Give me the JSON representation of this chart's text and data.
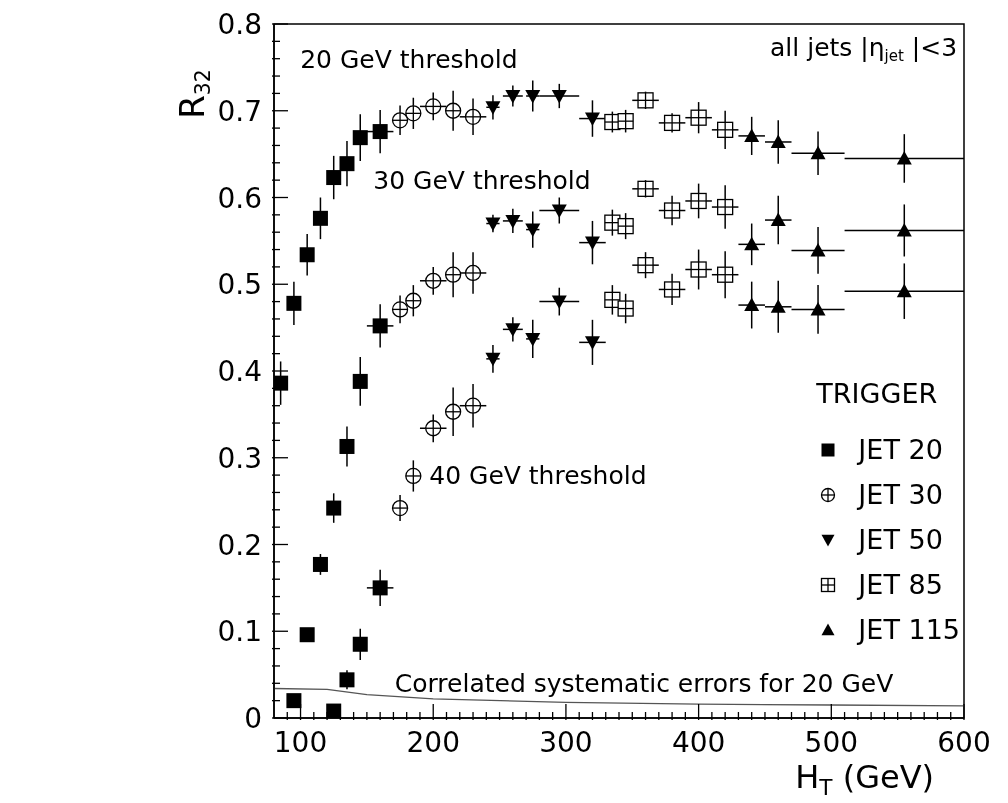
{
  "chart_data": {
    "type": "scatter",
    "xlabel": "H$_{T}$ (GeV)",
    "ylabel": "R$_{32}$",
    "legend_title": "TRIGGER",
    "xlim": [
      80,
      600
    ],
    "ylim": [
      0,
      0.8
    ],
    "xticks": [
      {
        "value": 90,
        "label": null
      },
      100,
      {
        "value": 110,
        "label": null
      },
      {
        "value": 120,
        "label": null
      },
      {
        "value": 130,
        "label": null
      },
      {
        "value": 140,
        "label": null
      },
      {
        "value": 150,
        "label": null
      },
      {
        "value": 160,
        "label": null
      },
      {
        "value": 170,
        "label": null
      },
      {
        "value": 180,
        "label": null
      },
      {
        "value": 190,
        "label": null
      },
      200,
      {
        "value": 210,
        "label": null
      },
      {
        "value": 220,
        "label": null
      },
      {
        "value": 230,
        "label": null
      },
      {
        "value": 240,
        "label": null
      },
      {
        "value": 250,
        "label": null
      },
      {
        "value": 260,
        "label": null
      },
      {
        "value": 270,
        "label": null
      },
      {
        "value": 280,
        "label": null
      },
      {
        "value": 290,
        "label": null
      },
      300,
      {
        "value": 310,
        "label": null
      },
      {
        "value": 320,
        "label": null
      },
      {
        "value": 330,
        "label": null
      },
      {
        "value": 340,
        "label": null
      },
      {
        "value": 350,
        "label": null
      },
      {
        "value": 360,
        "label": null
      },
      {
        "value": 370,
        "label": null
      },
      {
        "value": 380,
        "label": null
      },
      {
        "value": 390,
        "label": null
      },
      400,
      {
        "value": 410,
        "label": null
      },
      {
        "value": 420,
        "label": null
      },
      {
        "value": 430,
        "label": null
      },
      {
        "value": 440,
        "label": null
      },
      {
        "value": 450,
        "label": null
      },
      {
        "value": 460,
        "label": null
      },
      {
        "value": 470,
        "label": null
      },
      {
        "value": 480,
        "label": null
      },
      {
        "value": 490,
        "label": null
      },
      500,
      {
        "value": 510,
        "label": null
      },
      {
        "value": 520,
        "label": null
      },
      {
        "value": 530,
        "label": null
      },
      {
        "value": 540,
        "label": null
      },
      {
        "value": 550,
        "label": null
      },
      {
        "value": 560,
        "label": null
      },
      {
        "value": 570,
        "label": null
      },
      {
        "value": 580,
        "label": null
      },
      {
        "value": 590,
        "label": null
      },
      600
    ],
    "yticks": [
      0,
      {
        "value": 0.02,
        "label": null
      },
      {
        "value": 0.04,
        "label": null
      },
      {
        "value": 0.06,
        "label": null
      },
      {
        "value": 0.08,
        "label": null
      },
      0.1,
      {
        "value": 0.12,
        "label": null
      },
      {
        "value": 0.14,
        "label": null
      },
      {
        "value": 0.16,
        "label": null
      },
      {
        "value": 0.18,
        "label": null
      },
      0.2,
      {
        "value": 0.22,
        "label": null
      },
      {
        "value": 0.24,
        "label": null
      },
      {
        "value": 0.26,
        "label": null
      },
      {
        "value": 0.28,
        "label": null
      },
      0.3,
      {
        "value": 0.32,
        "label": null
      },
      {
        "value": 0.34,
        "label": null
      },
      {
        "value": 0.36,
        "label": null
      },
      {
        "value": 0.38,
        "label": null
      },
      0.4,
      {
        "value": 0.42,
        "label": null
      },
      {
        "value": 0.44,
        "label": null
      },
      {
        "value": 0.46,
        "label": null
      },
      {
        "value": 0.48,
        "label": null
      },
      0.5,
      {
        "value": 0.52,
        "label": null
      },
      {
        "value": 0.54,
        "label": null
      },
      {
        "value": 0.56,
        "label": null
      },
      {
        "value": 0.58,
        "label": null
      },
      0.6,
      {
        "value": 0.62,
        "label": null
      },
      {
        "value": 0.64,
        "label": null
      },
      {
        "value": 0.66,
        "label": null
      },
      {
        "value": 0.68,
        "label": null
      },
      0.7,
      {
        "value": 0.72,
        "label": null
      },
      {
        "value": 0.74,
        "label": null
      },
      {
        "value": 0.76,
        "label": null
      },
      {
        "value": 0.78,
        "label": null
      },
      0.8
    ],
    "legend": "right",
    "series": [
      {
        "name": "JET 20",
        "color": "#000000",
        "marker": "square",
        "x": [
          95,
          105,
          115,
          125,
          135,
          145,
          160,
          85,
          95,
          105,
          115,
          125,
          125,
          135,
          135,
          145,
          145,
          160,
          160
        ],
        "values": [
          0.478,
          0.534,
          0.576,
          0.623,
          0.639,
          0.669,
          0.676,
          0.386,
          0.02,
          0.096,
          0.177,
          0.242,
          0.008,
          0.313,
          0.044,
          0.388,
          0.085,
          0.452,
          0.15
        ],
        "errors": [
          0.025,
          0.024,
          0.024,
          0.025,
          0.026,
          0.027,
          0.025,
          0.025,
          null,
          0.005,
          0.012,
          0.017,
          null,
          0.023,
          0.011,
          0.028,
          0.018,
          0.025,
          0.021
        ],
        "xerrors": [
          5,
          5,
          5,
          5,
          5,
          5,
          10,
          5,
          5,
          5,
          5,
          5,
          5,
          5,
          5,
          5,
          5,
          10,
          10
        ]
      },
      {
        "name": "JET 30",
        "color": "#000000",
        "marker": "circle-open",
        "x": [
          175,
          185,
          200,
          215,
          230,
          175,
          185,
          200,
          215,
          230,
          175,
          185,
          200,
          215,
          230
        ],
        "values": [
          0.689,
          0.697,
          0.705,
          0.7,
          0.693,
          0.471,
          0.481,
          0.504,
          0.511,
          0.513,
          0.242,
          0.279,
          0.334,
          0.353,
          0.36
        ],
        "errors": [
          0.017,
          0.018,
          0.016,
          0.023,
          0.021,
          0.016,
          0.018,
          0.016,
          0.026,
          0.024,
          0.015,
          0.018,
          0.016,
          0.028,
          0.025
        ],
        "xerrors": [
          5,
          5,
          10,
          5,
          10,
          5,
          5,
          10,
          5,
          10,
          5,
          5,
          10,
          5,
          10
        ]
      },
      {
        "name": "JET 50",
        "color": "#000000",
        "marker": "triangle-down",
        "x": [
          245,
          260,
          275,
          295,
          320,
          245,
          260,
          275,
          295,
          320,
          245,
          260,
          275,
          295,
          320
        ],
        "values": [
          0.704,
          0.717,
          0.717,
          0.717,
          0.691,
          0.57,
          0.573,
          0.563,
          0.585,
          0.548,
          0.414,
          0.448,
          0.437,
          0.48,
          0.433
        ],
        "errors": [
          0.014,
          0.012,
          0.018,
          0.014,
          0.021,
          0.01,
          0.014,
          0.021,
          0.015,
          0.025,
          0.016,
          0.014,
          0.022,
          0.016,
          0.026
        ],
        "xerrors": [
          5,
          7.5,
          5,
          15,
          10,
          5,
          7.5,
          5,
          15,
          10,
          5,
          7.5,
          5,
          15,
          10
        ]
      },
      {
        "name": "JET 85",
        "color": "#000000",
        "marker": "square-open",
        "x": [
          335,
          345,
          360,
          380,
          400,
          420,
          335,
          345,
          360,
          380,
          400,
          420,
          335,
          345,
          360,
          380,
          400,
          420
        ],
        "values": [
          0.687,
          0.688,
          0.712,
          0.686,
          0.692,
          0.678,
          0.571,
          0.567,
          0.61,
          0.585,
          0.596,
          0.589,
          0.482,
          0.472,
          0.522,
          0.494,
          0.517,
          0.511
        ],
        "errors": [
          0.012,
          0.013,
          0.01,
          0.011,
          0.018,
          0.022,
          0.015,
          0.015,
          0.01,
          0.017,
          0.02,
          0.025,
          0.017,
          0.017,
          0.015,
          0.018,
          0.023,
          0.027
        ],
        "xerrors": [
          5,
          5,
          10,
          10,
          10,
          10,
          5,
          5,
          10,
          10,
          10,
          10,
          5,
          5,
          10,
          10,
          10,
          10
        ]
      },
      {
        "name": "JET 115",
        "color": "#000000",
        "marker": "triangle",
        "x": [
          440,
          460,
          490,
          555,
          440,
          460,
          490,
          555,
          440,
          460,
          490,
          555
        ],
        "values": [
          0.671,
          0.664,
          0.651,
          0.645,
          0.546,
          0.574,
          0.539,
          0.562,
          0.476,
          0.474,
          0.471,
          0.492
        ],
        "errors": [
          0.022,
          0.025,
          0.025,
          0.028,
          0.024,
          0.028,
          0.027,
          0.03,
          0.027,
          0.03,
          0.028,
          0.032
        ],
        "xerrors": [
          10,
          10,
          20,
          45,
          10,
          10,
          20,
          45,
          10,
          10,
          20,
          45
        ]
      },
      {
        "type": "line",
        "color": "#555555",
        "marker": "none",
        "x": [
          80,
          120,
          150,
          200,
          300,
          400,
          500,
          600
        ],
        "values": [
          0.034,
          0.033,
          0.027,
          0.022,
          0.018,
          0.016,
          0.015,
          0.014
        ]
      }
    ],
    "annotations": [
      "20 GeV threshold",
      "30 GeV threshold",
      "40 GeV threshold",
      "Correlated systematic errors for 20 GeV",
      "all jets |η$_{jet}$|<3"
    ]
  }
}
